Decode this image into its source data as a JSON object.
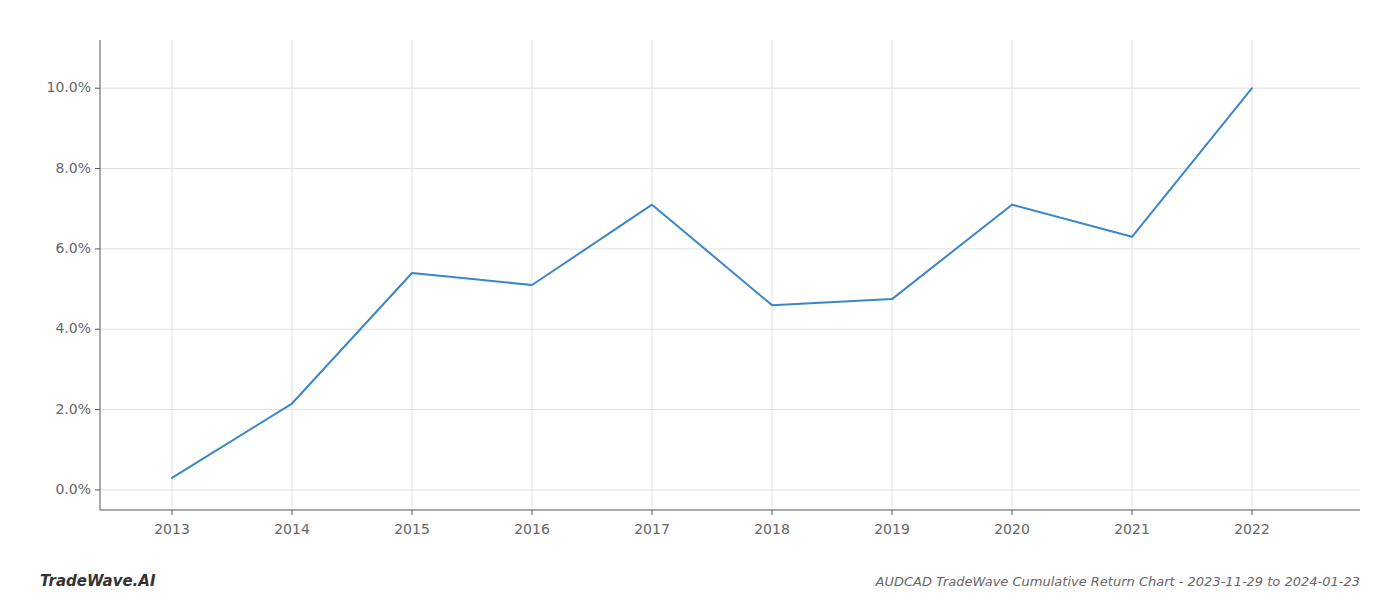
{
  "chart_data": {
    "type": "line",
    "title": "AUDCAD TradeWave Cumulative Return Chart - 2023-11-29 to 2024-01-23",
    "annotations": [
      "TradeWave.AI"
    ],
    "x": [
      2013,
      2014,
      2015,
      2016,
      2017,
      2018,
      2019,
      2020,
      2021,
      2022
    ],
    "values": [
      0.003,
      0.0215,
      0.054,
      0.051,
      0.071,
      0.046,
      0.0475,
      0.071,
      0.063,
      0.1
    ],
    "color": "#3a86c8",
    "xlim": [
      2012.4,
      2022.9
    ],
    "xticks": [
      2013,
      2014,
      2015,
      2016,
      2017,
      2018,
      2019,
      2020,
      2021,
      2022
    ],
    "ylim": [
      -0.005,
      0.112
    ],
    "yticks": [
      {
        "value": 0.0,
        "label": "0.0%"
      },
      {
        "value": 0.02,
        "label": "2.0%"
      },
      {
        "value": 0.04,
        "label": "4.0%"
      },
      {
        "value": 0.06,
        "label": "6.0%"
      },
      {
        "value": 0.08,
        "label": "8.0%"
      },
      {
        "value": 0.1,
        "label": "10.0%"
      }
    ],
    "grid": true
  }
}
